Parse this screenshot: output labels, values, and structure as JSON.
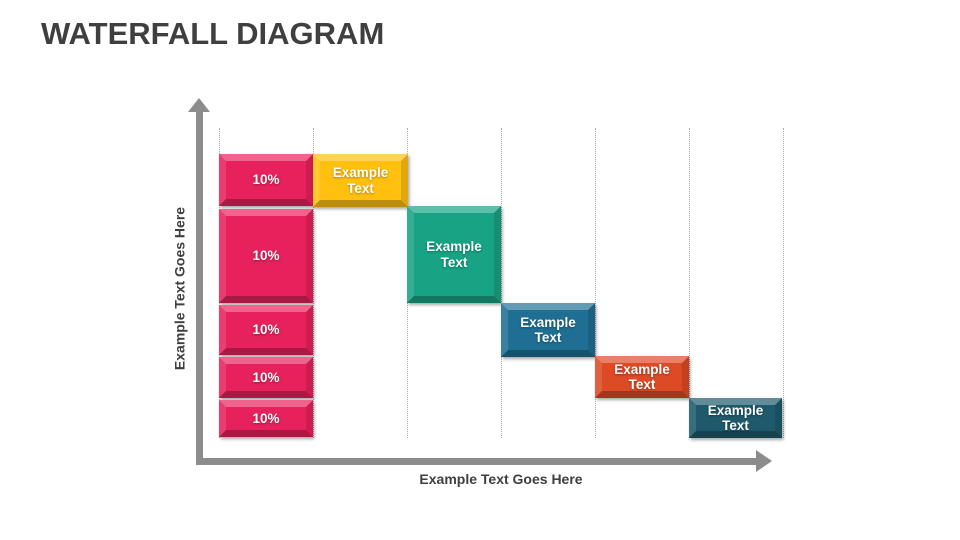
{
  "title": "WATERFALL DIAGRAM",
  "axes": {
    "y_label": "Example Text Goes Here",
    "x_label": "Example Text Goes Here"
  },
  "stack_blocks": [
    {
      "label": "10%"
    },
    {
      "label": "10%"
    },
    {
      "label": "10%"
    },
    {
      "label": "10%"
    },
    {
      "label": "10%"
    }
  ],
  "step_blocks": [
    {
      "label": "Example Text",
      "color": "#FFC010",
      "name": "yellow"
    },
    {
      "label": "Example Text",
      "color": "#17A384",
      "name": "green"
    },
    {
      "label": "Example Text",
      "color": "#1F6F94",
      "name": "blue"
    },
    {
      "label": "Example Text",
      "color": "#DC4B26",
      "name": "orange"
    },
    {
      "label": "Example Text",
      "color": "#1E5A6B",
      "name": "dark-teal"
    }
  ],
  "palette": {
    "stack_color": "#E7215B",
    "title_color": "#3F3F3F",
    "axis_color": "#8C8C8C",
    "gridline_color": "#ABABAB",
    "block_text_color": "#FFFFFF"
  }
}
